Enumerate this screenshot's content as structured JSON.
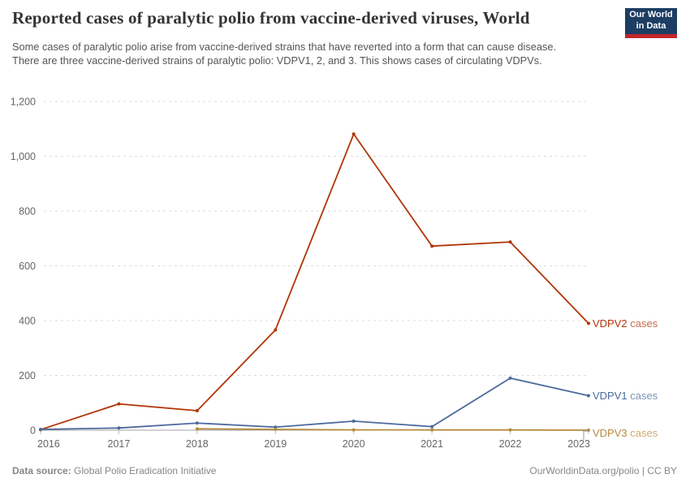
{
  "header": {
    "title": "Reported cases of paralytic polio from vaccine-derived viruses, World",
    "subtitle": "Some cases of paralytic polio arise from vaccine-derived strains that have reverted into a form that can cause disease. There are three vaccine-derived strains of paralytic polio: VDPV1, 2, and 3. This shows cases of circulating VDPVs.",
    "logo": {
      "line1": "Our World",
      "line2": "in Data",
      "bg_color": "#1d3d63",
      "bar_color": "#c1272d"
    }
  },
  "footer": {
    "source_label": "Data source:",
    "source_value": "Global Polio Eradication Initiative",
    "attribution": "OurWorldinData.org/polio | CC BY"
  },
  "chart_data": {
    "type": "line",
    "title": "Reported cases of paralytic polio from vaccine-derived viruses, World",
    "x": [
      2016,
      2017,
      2018,
      2019,
      2020,
      2021,
      2022,
      2023
    ],
    "series": [
      {
        "name": "VDPV2 cases",
        "color": "#B13507",
        "values": [
          2,
          96,
          71,
          366,
          1081,
          672,
          687,
          390
        ]
      },
      {
        "name": "VDPV1 cases",
        "color": "#4C6A9C",
        "values": [
          3,
          8,
          26,
          11,
          33,
          13,
          190,
          126
        ]
      },
      {
        "name": "VDPV3 cases",
        "color": "#B58B3E",
        "values": [
          null,
          null,
          5,
          3,
          1,
          1,
          1,
          0
        ]
      }
    ],
    "xlabel": "",
    "ylabel": "",
    "ylim": [
      0,
      1200
    ],
    "ytick_step": 200,
    "grid": "horizontal-dashed",
    "legend_position": "line-end-labels",
    "colors": {
      "gridline": "#dcdcdc",
      "zero_line": "#a3a3a3",
      "axis_text": "#666666",
      "connector": "#999999"
    }
  }
}
